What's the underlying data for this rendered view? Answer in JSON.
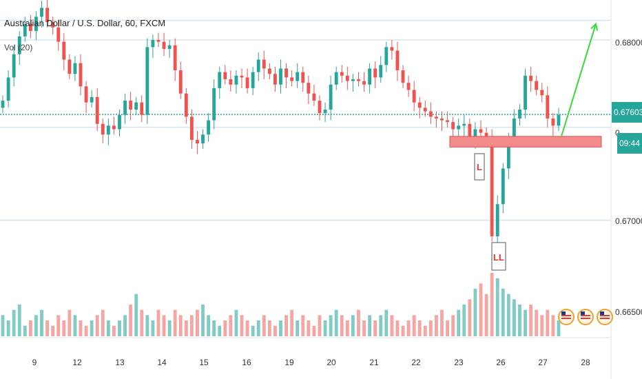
{
  "header": {
    "symbol_title": "Australian Dollar / U.S. Dollar, 60, FXCM",
    "volume_label": "Vol (20)"
  },
  "chart_data": {
    "type": "candlestick",
    "price_axis": {
      "ticks": [
        "0.68000",
        "0.67000",
        "0.66500"
      ],
      "current_price": "0.67603",
      "countdown": "09:44",
      "partial_label": "0"
    },
    "x_axis_ticks": [
      "9",
      "12",
      "13",
      "14",
      "15",
      "16",
      "19",
      "20",
      "21",
      "22",
      "23",
      "26",
      "27",
      "28"
    ],
    "horizontal_levels": [
      0.6813,
      0.6802,
      0.67603,
      0.6753,
      0.6701
    ],
    "support_zone": [
      0.6742,
      0.6748
    ],
    "markers": [
      {
        "text": "L",
        "price": 0.6733
      },
      {
        "text": "LL",
        "price": 0.6682
      }
    ],
    "projection_arrow": {
      "from": 0.6748,
      "to": 0.6811
    },
    "price_series": [
      0.6768,
      0.6781,
      0.6794,
      0.6804,
      0.6811,
      0.6807,
      0.6815,
      0.682,
      0.6812,
      0.6809,
      0.6801,
      0.6791,
      0.6783,
      0.6789,
      0.6776,
      0.6767,
      0.677,
      0.6755,
      0.6749,
      0.6754,
      0.6752,
      0.676,
      0.6768,
      0.6763,
      0.6767,
      0.676,
      0.6798,
      0.6802,
      0.6801,
      0.6797,
      0.6799,
      0.6785,
      0.6772,
      0.6759,
      0.6746,
      0.6744,
      0.6749,
      0.6757,
      0.6775,
      0.6784,
      0.678,
      0.6777,
      0.6782,
      0.6781,
      0.6775,
      0.6784,
      0.6791,
      0.6786,
      0.6783,
      0.6777,
      0.6786,
      0.6781,
      0.6779,
      0.6784,
      0.6778,
      0.6772,
      0.6768,
      0.6761,
      0.6763,
      0.6777,
      0.6784,
      0.6782,
      0.6779,
      0.678,
      0.6779,
      0.6777,
      0.6786,
      0.6781,
      0.6788,
      0.6798,
      0.6796,
      0.6785,
      0.6778,
      0.6774,
      0.6767,
      0.6764,
      0.6762,
      0.6759,
      0.6758,
      0.6757,
      0.6756,
      0.6752,
      0.6754,
      0.6755,
      0.6745,
      0.6752,
      0.675,
      0.6748,
      0.6692,
      0.671,
      0.673,
      0.6746,
      0.6758,
      0.6763,
      0.6782,
      0.6779,
      0.6774,
      0.6771,
      0.6758,
      0.6754,
      0.676
    ],
    "volume_series": [
      4,
      3,
      5,
      6,
      2,
      3,
      4,
      5,
      3,
      2,
      4,
      3,
      5,
      4,
      3,
      2,
      3,
      4,
      5,
      3,
      2,
      3,
      4,
      6,
      8,
      5,
      4,
      3,
      5,
      4,
      3,
      5,
      4,
      3,
      4,
      5,
      6,
      4,
      3,
      2,
      3,
      4,
      5,
      4,
      3,
      2,
      3,
      4,
      3,
      2,
      3,
      4,
      5,
      3,
      4,
      3,
      2,
      4,
      3,
      4,
      5,
      4,
      3,
      4,
      5,
      3,
      4,
      3,
      4,
      5,
      4,
      3,
      2,
      3,
      4,
      3,
      2,
      3,
      4,
      5,
      3,
      4,
      5,
      6,
      7,
      9,
      10,
      8,
      12,
      11,
      9,
      8,
      7,
      6,
      5,
      6,
      5,
      4,
      5,
      4,
      3
    ],
    "colors": {
      "up": "#26a69a",
      "down": "#ef5350",
      "volume_up": "#80cbc4",
      "volume_down": "#f7a5a3",
      "price_line": "#26a69a",
      "grid": "#d6e4f0",
      "zone_fill": "#f28b8b",
      "zone_border": "#e05050",
      "arrow": "#33dd33",
      "badge": "#26a69a"
    }
  }
}
